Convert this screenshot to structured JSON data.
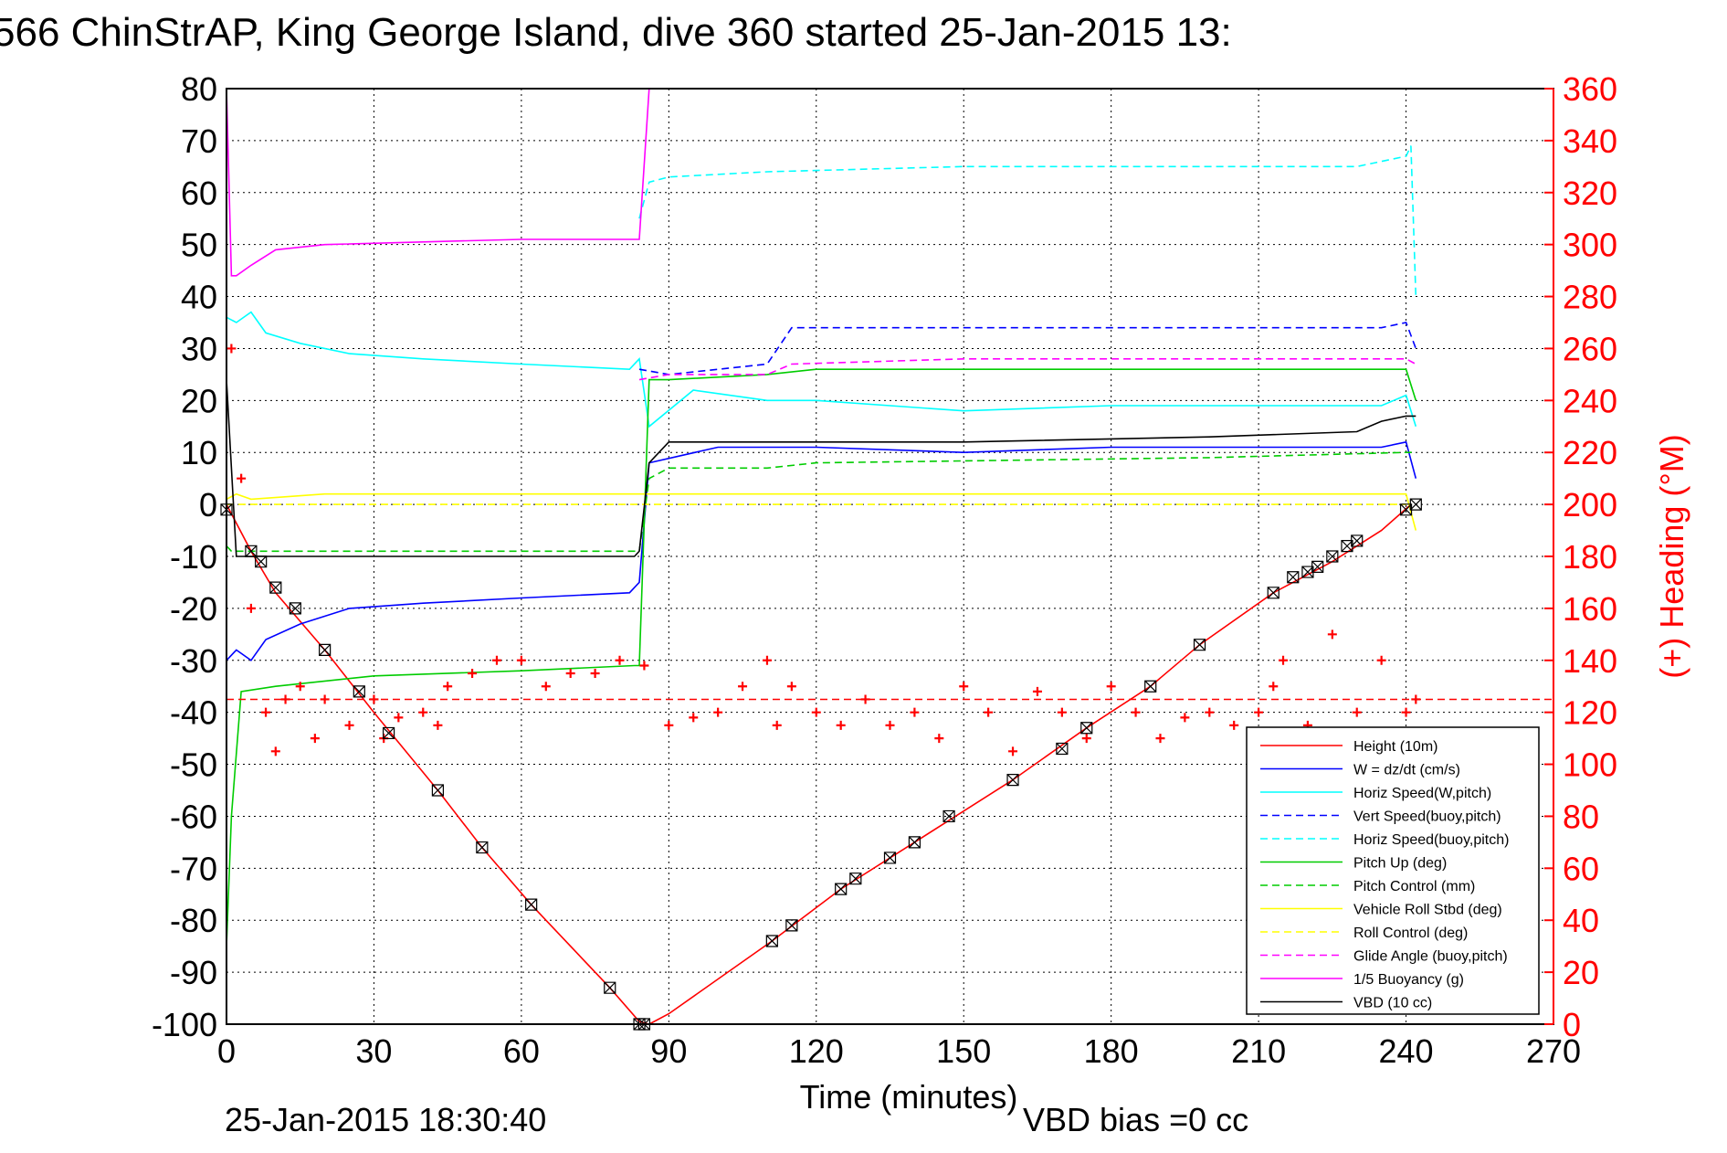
{
  "chart_data": {
    "type": "line",
    "title": "566 ChinStrAP, King George Island, dive 360 started 25-Jan-2015 13:",
    "xlabel": "Time (minutes)",
    "ylabel": "",
    "y2label": "(+) Heading (°M)",
    "xlim": [
      0,
      270
    ],
    "ylim": [
      -100,
      80
    ],
    "y2lim": [
      0,
      360
    ],
    "x_ticks": [
      "0",
      "30",
      "60",
      "90",
      "120",
      "150",
      "180",
      "210",
      "240",
      "270"
    ],
    "y_ticks": [
      "80",
      "70",
      "60",
      "50",
      "40",
      "30",
      "20",
      "10",
      "0",
      "-10",
      "-20",
      "-30",
      "-40",
      "-50",
      "-60",
      "-70",
      "-80",
      "-90",
      "-100"
    ],
    "y2_ticks": [
      "360",
      "340",
      "320",
      "300",
      "280",
      "260",
      "240",
      "220",
      "200",
      "180",
      "160",
      "140",
      "120",
      "100",
      "80",
      "60",
      "40",
      "20",
      "0"
    ],
    "grid": true,
    "legend_position": "bottom-right",
    "footer_left": "25-Jan-2015 18:30:40",
    "footer_right": "VBD bias =0 cc",
    "colors": {
      "red": "#ff0000",
      "blue": "#0000ff",
      "cyan": "#00ffff",
      "green": "#00cc00",
      "yellow": "#ffff00",
      "magenta": "#ff00ff",
      "black": "#000000"
    },
    "series": [
      {
        "name": "Height (10m)",
        "color": "#ff0000",
        "style": "solid",
        "x": [
          0,
          5,
          10,
          20,
          30,
          43,
          52,
          62,
          78,
          84,
          86,
          90,
          111,
          125,
          140,
          160,
          175,
          188,
          198,
          213,
          225,
          235,
          241
        ],
        "y": [
          0,
          -9,
          -17,
          -28,
          -40,
          -55,
          -66,
          -77,
          -93,
          -99.5,
          -100,
          -98,
          -84,
          -74,
          -65,
          -53,
          -43,
          -35,
          -27,
          -17,
          -11,
          -5,
          0
        ]
      },
      {
        "name": "W = dz/dt (cm/s)",
        "color": "#0000ff",
        "style": "solid",
        "x": [
          0,
          2,
          5,
          8,
          15,
          25,
          40,
          60,
          82,
          84,
          86,
          100,
          120,
          150,
          180,
          210,
          235,
          240,
          242
        ],
        "y": [
          -30,
          -28,
          -30,
          -26,
          -23,
          -20,
          -19,
          -18,
          -17,
          -15,
          8,
          11,
          11,
          10,
          11,
          11,
          11,
          12,
          5
        ]
      },
      {
        "name": "Horiz Speed(W,pitch)",
        "color": "#00ffff",
        "style": "solid",
        "x": [
          0,
          2,
          5,
          8,
          15,
          25,
          40,
          60,
          82,
          84,
          86,
          95,
          110,
          120,
          150,
          180,
          210,
          235,
          240,
          242
        ],
        "y": [
          36,
          35,
          37,
          33,
          31,
          29,
          28,
          27,
          26,
          28,
          15,
          22,
          20,
          20,
          18,
          19,
          19,
          19,
          21,
          15
        ]
      },
      {
        "name": "Vert Speed(buoy,pitch)",
        "color": "#0000ff",
        "style": "dashed",
        "x": [
          84,
          90,
          110,
          115,
          140,
          180,
          210,
          235,
          240,
          242
        ],
        "y": [
          26,
          25,
          27,
          34,
          34,
          34,
          34,
          34,
          35,
          30
        ]
      },
      {
        "name": "Horiz Speed(buoy,pitch)",
        "color": "#00ffff",
        "style": "dashed",
        "x": [
          84,
          86,
          90,
          110,
          150,
          200,
          230,
          240,
          241,
          242
        ],
        "y": [
          55,
          62,
          63,
          64,
          65,
          65,
          65,
          67,
          69,
          40
        ]
      },
      {
        "name": "Pitch Up (deg)",
        "color": "#00cc00",
        "style": "solid",
        "x": [
          0,
          1,
          3,
          10,
          30,
          60,
          83,
          84,
          86,
          90,
          110,
          120,
          150,
          180,
          210,
          240,
          242
        ],
        "y": [
          -85,
          -60,
          -36,
          -35,
          -33,
          -32,
          -31,
          -31,
          24,
          24,
          25,
          26,
          26,
          26,
          26,
          26,
          20
        ]
      },
      {
        "name": "Pitch Control (mm)",
        "color": "#00cc00",
        "style": "dashed",
        "x": [
          0,
          1,
          83,
          84,
          86,
          90,
          110,
          120,
          200,
          240,
          242
        ],
        "y": [
          -8,
          -9,
          -9,
          -9,
          5,
          7,
          7,
          8,
          9,
          10,
          10
        ]
      },
      {
        "name": "Vehicle Roll Stbd (deg)",
        "color": "#ffff00",
        "style": "solid",
        "x": [
          0,
          2,
          5,
          20,
          40,
          60,
          83,
          86,
          90,
          111,
          112,
          140,
          170,
          200,
          210,
          220,
          240,
          242
        ],
        "y": [
          1,
          2,
          1,
          2,
          2,
          2,
          2,
          2,
          2,
          2,
          2,
          2,
          2,
          2,
          2,
          2,
          2,
          -5
        ]
      },
      {
        "name": "Roll Control (deg)",
        "color": "#ffff00",
        "style": "dashed",
        "x": [
          0,
          5,
          30,
          60,
          84,
          90,
          110,
          112,
          140,
          180,
          210,
          240
        ],
        "y": [
          0,
          0,
          0,
          0,
          0,
          0,
          0,
          0,
          0,
          0,
          0,
          0
        ]
      },
      {
        "name": "Glide Angle (buoy,pitch)",
        "color": "#ff00ff",
        "style": "dashed",
        "x": [
          84,
          90,
          110,
          115,
          150,
          200,
          230,
          240,
          242
        ],
        "y": [
          24,
          25,
          25,
          27,
          28,
          28,
          28,
          28,
          27
        ]
      },
      {
        "name": "1/5 Buoyancy (g)",
        "color": "#ff00ff",
        "style": "solid",
        "x": [
          0,
          1,
          2,
          5,
          10,
          20,
          40,
          60,
          83,
          84,
          86
        ],
        "y": [
          80,
          44,
          44,
          46,
          49,
          50,
          50.5,
          51,
          51,
          51,
          80
        ]
      },
      {
        "name": "VBD (10 cc)",
        "color": "#000000",
        "style": "solid",
        "x": [
          0,
          2,
          5,
          30,
          83,
          84,
          86,
          90,
          110,
          150,
          200,
          230,
          235,
          240,
          242
        ],
        "y": [
          24,
          -10,
          -10,
          -10,
          -10,
          -9,
          8,
          12,
          12,
          12,
          13,
          14,
          16,
          17,
          17
        ]
      }
    ],
    "heading_series": {
      "name": "(+) Heading",
      "color": "#ff0000",
      "marker": "+",
      "reference_line_deg": 125,
      "x": [
        1,
        3,
        5,
        8,
        10,
        12,
        15,
        18,
        20,
        25,
        30,
        32,
        35,
        40,
        43,
        45,
        50,
        55,
        60,
        65,
        70,
        75,
        80,
        85,
        90,
        95,
        100,
        105,
        110,
        112,
        115,
        120,
        125,
        130,
        135,
        140,
        145,
        150,
        155,
        160,
        165,
        170,
        175,
        180,
        185,
        190,
        195,
        200,
        205,
        210,
        213,
        215,
        220,
        225,
        230,
        235,
        240,
        242
      ],
      "y": [
        260,
        210,
        160,
        120,
        105,
        125,
        130,
        110,
        125,
        115,
        125,
        110,
        118,
        120,
        115,
        130,
        135,
        140,
        140,
        130,
        135,
        135,
        140,
        138,
        115,
        118,
        120,
        130,
        140,
        115,
        130,
        120,
        115,
        125,
        115,
        120,
        110,
        130,
        120,
        105,
        128,
        120,
        110,
        130,
        120,
        110,
        118,
        120,
        115,
        120,
        130,
        140,
        115,
        150,
        120,
        140,
        120,
        125
      ]
    },
    "dive_markers": {
      "x": [
        0,
        5,
        7,
        10,
        14,
        20,
        27,
        33,
        43,
        52,
        62,
        78,
        84,
        85,
        111,
        115,
        125,
        128,
        135,
        140,
        147,
        160,
        170,
        175,
        188,
        198,
        213,
        217,
        220,
        222,
        225,
        228,
        230,
        240,
        242
      ],
      "y": [
        -1,
        -9,
        -11,
        -16,
        -20,
        -28,
        -36,
        -44,
        -55,
        -66,
        -77,
        -93,
        -100,
        -100,
        -84,
        -81,
        -74,
        -72,
        -68,
        -65,
        -60,
        -53,
        -47,
        -43,
        -35,
        -27,
        -17,
        -14,
        -13,
        -12,
        -10,
        -8,
        -7,
        -1,
        0
      ]
    }
  }
}
